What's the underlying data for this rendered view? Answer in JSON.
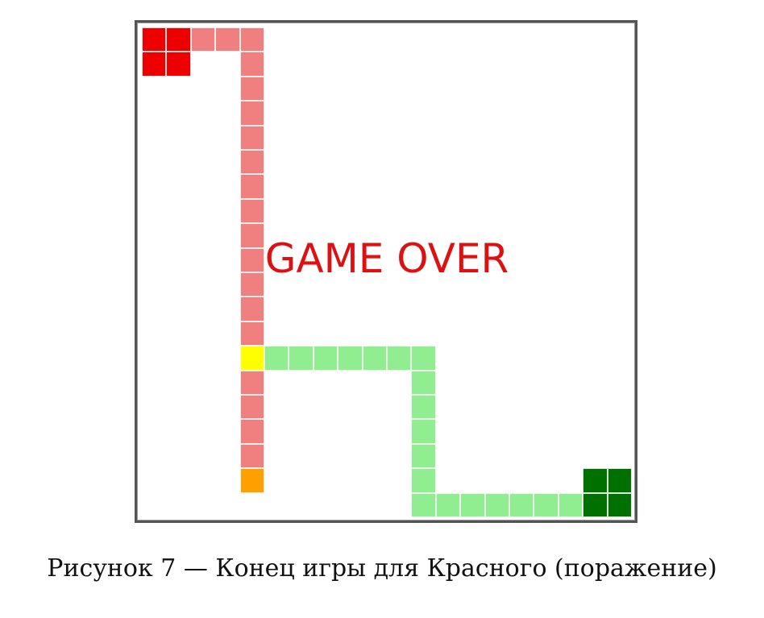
{
  "game": {
    "overlay_text": "GAME OVER",
    "grid_size": 20,
    "colors": {
      "red_base": "#ee0000",
      "red_trail": "#f08080",
      "green_base": "#007000",
      "green_trail": "#90ee90",
      "red_tail_end": "#ffa000",
      "collision_cell": "#ffff00",
      "overlay_text": "#dd1111"
    },
    "red_base_cells": [
      [
        0,
        0
      ],
      [
        1,
        0
      ],
      [
        0,
        1
      ],
      [
        1,
        1
      ]
    ],
    "green_base_cells": [
      [
        18,
        18
      ],
      [
        19,
        18
      ],
      [
        18,
        19
      ],
      [
        19,
        19
      ]
    ],
    "red_trail_cells": [
      [
        2,
        0
      ],
      [
        3,
        0
      ],
      [
        4,
        0
      ],
      [
        4,
        1
      ],
      [
        4,
        2
      ],
      [
        4,
        3
      ],
      [
        4,
        4
      ],
      [
        4,
        5
      ],
      [
        4,
        6
      ],
      [
        4,
        7
      ],
      [
        4,
        8
      ],
      [
        4,
        9
      ],
      [
        4,
        10
      ],
      [
        4,
        11
      ],
      [
        4,
        12
      ],
      [
        4,
        13
      ],
      [
        4,
        14
      ],
      [
        4,
        15
      ],
      [
        4,
        16
      ],
      [
        4,
        17
      ]
    ],
    "red_tail_end_cell": [
      4,
      18
    ],
    "collision_cell": [
      4,
      13
    ],
    "green_trail_cells": [
      [
        5,
        13
      ],
      [
        6,
        13
      ],
      [
        7,
        13
      ],
      [
        8,
        13
      ],
      [
        9,
        13
      ],
      [
        10,
        13
      ],
      [
        11,
        13
      ],
      [
        11,
        14
      ],
      [
        11,
        15
      ],
      [
        11,
        16
      ],
      [
        11,
        17
      ],
      [
        11,
        18
      ],
      [
        11,
        19
      ],
      [
        12,
        19
      ],
      [
        13,
        19
      ],
      [
        14,
        19
      ],
      [
        15,
        19
      ],
      [
        16,
        19
      ],
      [
        17,
        19
      ]
    ]
  },
  "caption": "Рисунок 7 — Конец игры для Красного (поражение)"
}
